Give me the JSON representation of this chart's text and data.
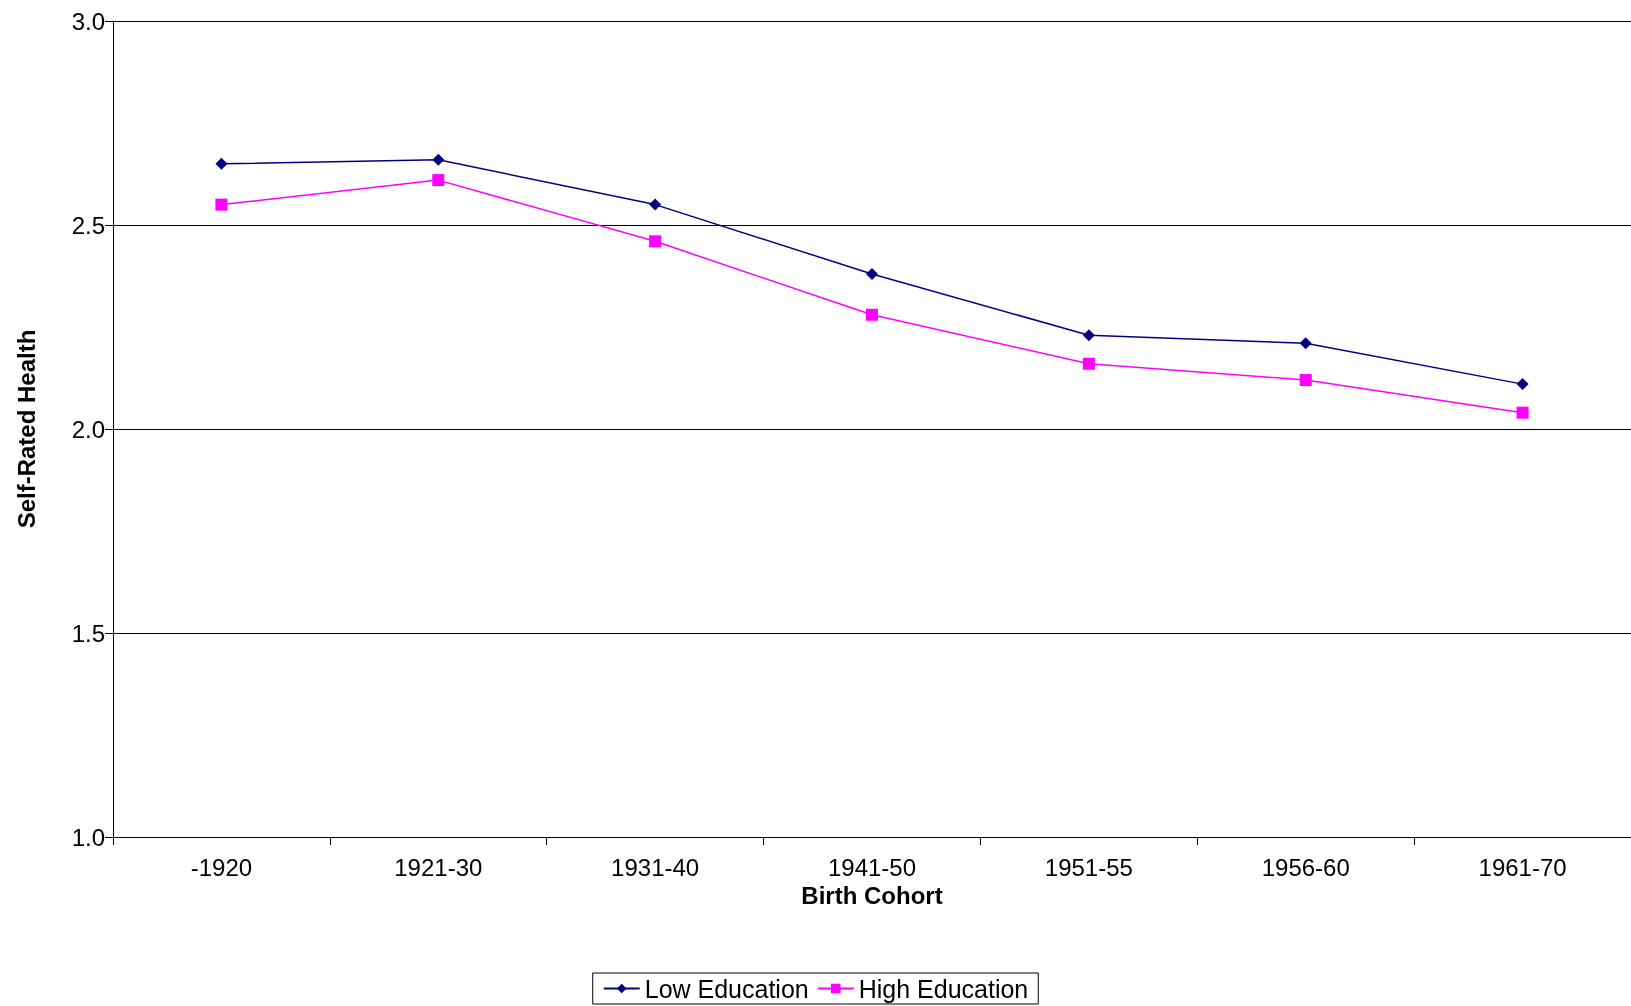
{
  "chart_data": {
    "type": "line",
    "xlabel": "Birth Cohort",
    "ylabel": "Self-Rated Health",
    "categories": [
      "-1920",
      "1921-30",
      "1931-40",
      "1941-50",
      "1951-55",
      "1956-60",
      "1961-70"
    ],
    "series": [
      {
        "name": "Low Education",
        "color": "#000080",
        "marker": "diamond",
        "values": [
          2.65,
          2.66,
          2.55,
          2.38,
          2.23,
          2.21,
          2.11
        ]
      },
      {
        "name": "High Education",
        "color": "#ff00ff",
        "marker": "square",
        "values": [
          2.55,
          2.61,
          2.46,
          2.28,
          2.16,
          2.12,
          2.04
        ]
      }
    ],
    "ylim": [
      1.0,
      3.0
    ],
    "yticks": [
      {
        "value": 1,
        "label": "1.0"
      },
      1.5,
      {
        "value": 2,
        "label": "2.0"
      },
      2.5,
      {
        "value": 3,
        "label": "3.0"
      }
    ],
    "grid": "y",
    "legend": "bottom",
    "line_style": "solid"
  }
}
